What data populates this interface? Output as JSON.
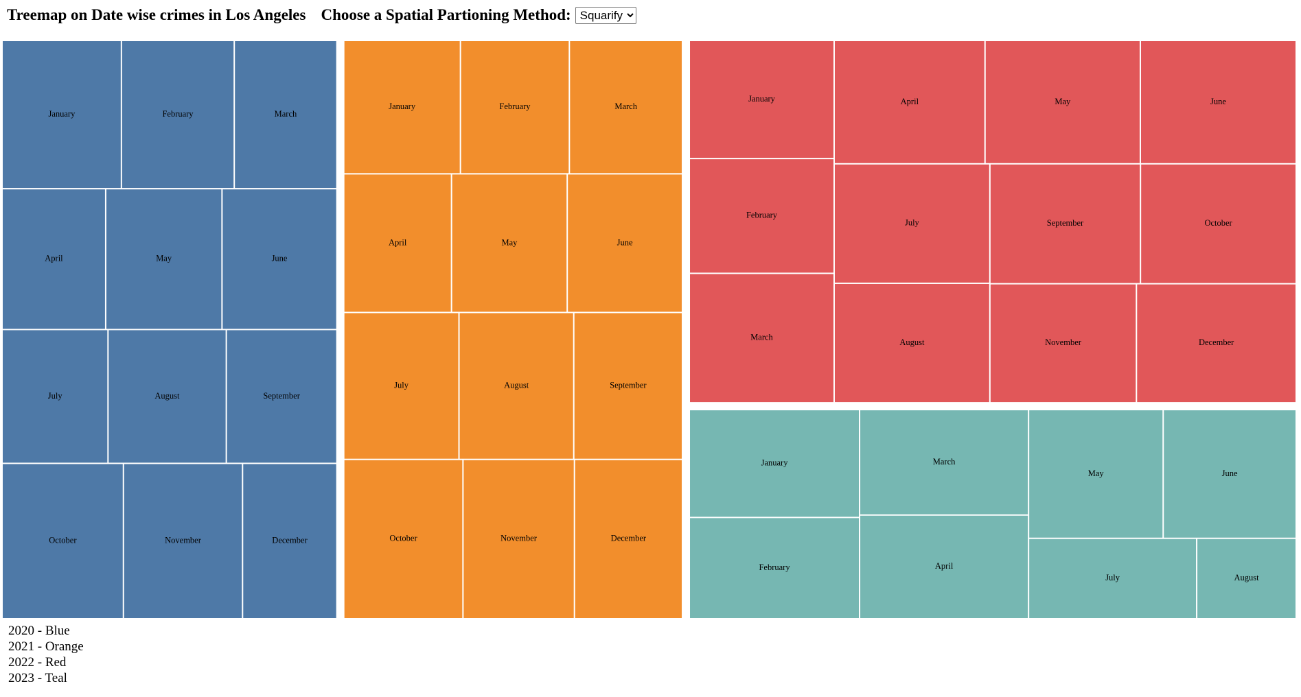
{
  "header": {
    "title": "Treemap on Date wise crimes in Los Angeles",
    "method_label": "Choose a Spatial Partioning Method:",
    "method_selected": "Squarify"
  },
  "legend": [
    {
      "text": "2020 - Blue"
    },
    {
      "text": "2021 - Orange"
    },
    {
      "text": "2022 - Red"
    },
    {
      "text": "2023 - Teal"
    }
  ],
  "chart_data": {
    "type": "treemap",
    "title": "Treemap on Date wise crimes in Los Angeles",
    "tiling": "Squarify",
    "groups": [
      {
        "name": "2020",
        "color": "#4e79a7",
        "months": [
          {
            "label": "January",
            "value": 25.7
          },
          {
            "label": "February",
            "value": 24.3
          },
          {
            "label": "March",
            "value": 22.1
          },
          {
            "label": "April",
            "value": 21.2
          },
          {
            "label": "May",
            "value": 23.8
          },
          {
            "label": "June",
            "value": 23.5
          },
          {
            "label": "July",
            "value": 20.6
          },
          {
            "label": "August",
            "value": 23.0
          },
          {
            "label": "September",
            "value": 21.5
          },
          {
            "label": "October",
            "value": 27.4
          },
          {
            "label": "November",
            "value": 26.9
          },
          {
            "label": "December",
            "value": 21.3
          }
        ]
      },
      {
        "name": "2021",
        "color": "#f28e2c",
        "months": [
          {
            "label": "January",
            "value": 22.6
          },
          {
            "label": "February",
            "value": 21.1
          },
          {
            "label": "March",
            "value": 21.9
          },
          {
            "label": "April",
            "value": 21.7
          },
          {
            "label": "May",
            "value": 23.3
          },
          {
            "label": "June",
            "value": 23.2
          },
          {
            "label": "July",
            "value": 24.6
          },
          {
            "label": "August",
            "value": 24.5
          },
          {
            "label": "September",
            "value": 23.2
          },
          {
            "label": "October",
            "value": 27.6
          },
          {
            "label": "November",
            "value": 25.8
          },
          {
            "label": "December",
            "value": 25.0
          }
        ]
      },
      {
        "name": "2022",
        "color": "#e15759",
        "months": [
          {
            "label": "January",
            "value": 25.0
          },
          {
            "label": "February",
            "value": 24.3
          },
          {
            "label": "March",
            "value": 27.4
          },
          {
            "label": "April",
            "value": 27.2
          },
          {
            "label": "May",
            "value": 28.0
          },
          {
            "label": "June",
            "value": 28.1
          },
          {
            "label": "July",
            "value": 27.2
          },
          {
            "label": "August",
            "value": 27.2
          },
          {
            "label": "September",
            "value": 26.4
          },
          {
            "label": "October",
            "value": 27.3
          },
          {
            "label": "November",
            "value": 25.5
          },
          {
            "label": "December",
            "value": 27.8
          }
        ]
      },
      {
        "name": "2023",
        "color": "#76b7b2",
        "months": [
          {
            "label": "January",
            "value": 26.6
          },
          {
            "label": "February",
            "value": 25.0
          },
          {
            "label": "March",
            "value": 25.8
          },
          {
            "label": "April",
            "value": 25.4
          },
          {
            "label": "May",
            "value": 25.1
          },
          {
            "label": "June",
            "value": 24.8
          },
          {
            "label": "July",
            "value": 19.6
          },
          {
            "label": "August",
            "value": 11.6
          }
        ]
      }
    ]
  }
}
